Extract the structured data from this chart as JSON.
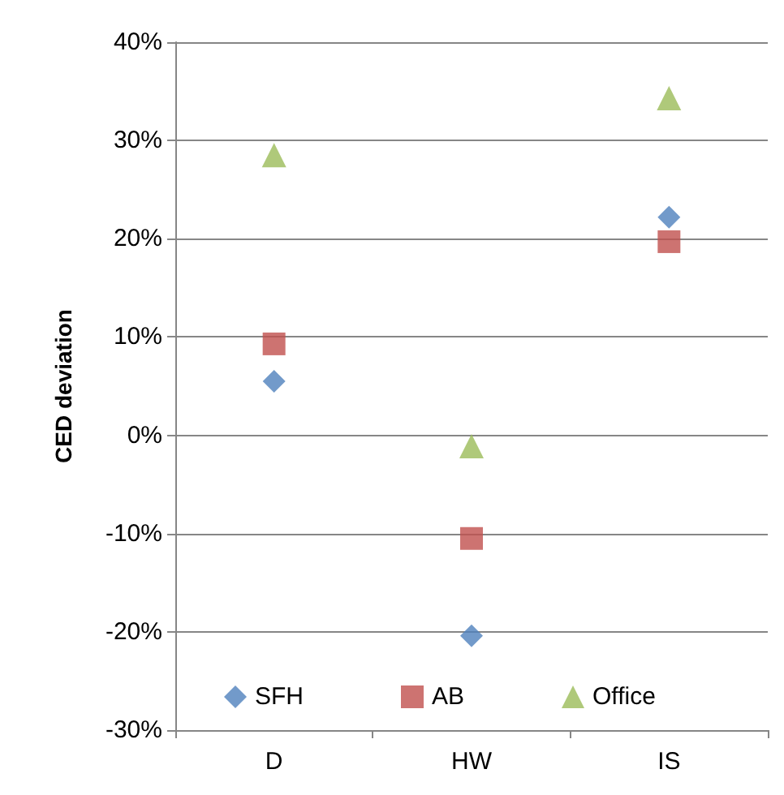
{
  "chart_data": {
    "type": "scatter",
    "ylabel": "CED deviation",
    "categories": [
      "D",
      "HW",
      "IS"
    ],
    "series": [
      {
        "name": "SFH",
        "color": "#4f81bd",
        "marker": "diamond",
        "values": [
          5.5,
          -20.4,
          22.2
        ]
      },
      {
        "name": "AB",
        "color": "#c0504d",
        "marker": "square",
        "values": [
          9.3,
          -10.5,
          19.7
        ]
      },
      {
        "name": "Office",
        "color": "#9bbb59",
        "marker": "triangle",
        "values": [
          28.5,
          -1.1,
          34.3
        ]
      }
    ],
    "ylim": [
      -30,
      40
    ],
    "yticks": [
      {
        "value": -30,
        "label": "-30%"
      },
      {
        "value": -20,
        "label": "-20%"
      },
      {
        "value": -10,
        "label": "-10%"
      },
      {
        "value": 0,
        "label": "0%"
      },
      {
        "value": 10,
        "label": "10%"
      },
      {
        "value": 20,
        "label": "20%"
      },
      {
        "value": 30,
        "label": "30%"
      },
      {
        "value": 40,
        "label": "40%"
      }
    ],
    "grid": "y",
    "legend": "bottom"
  }
}
